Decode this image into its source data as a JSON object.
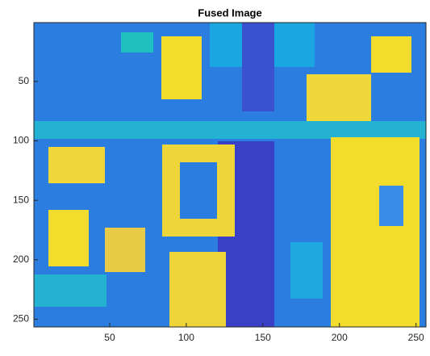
{
  "chart_data": {
    "type": "image",
    "title": "Fused Image",
    "xlim": [
      0.5,
      256.5
    ],
    "ylim": [
      0.5,
      256.5
    ],
    "y_reversed": true,
    "xticks": [
      50,
      100,
      150,
      200,
      250
    ],
    "yticks": [
      50,
      100,
      150,
      200,
      250
    ]
  }
}
